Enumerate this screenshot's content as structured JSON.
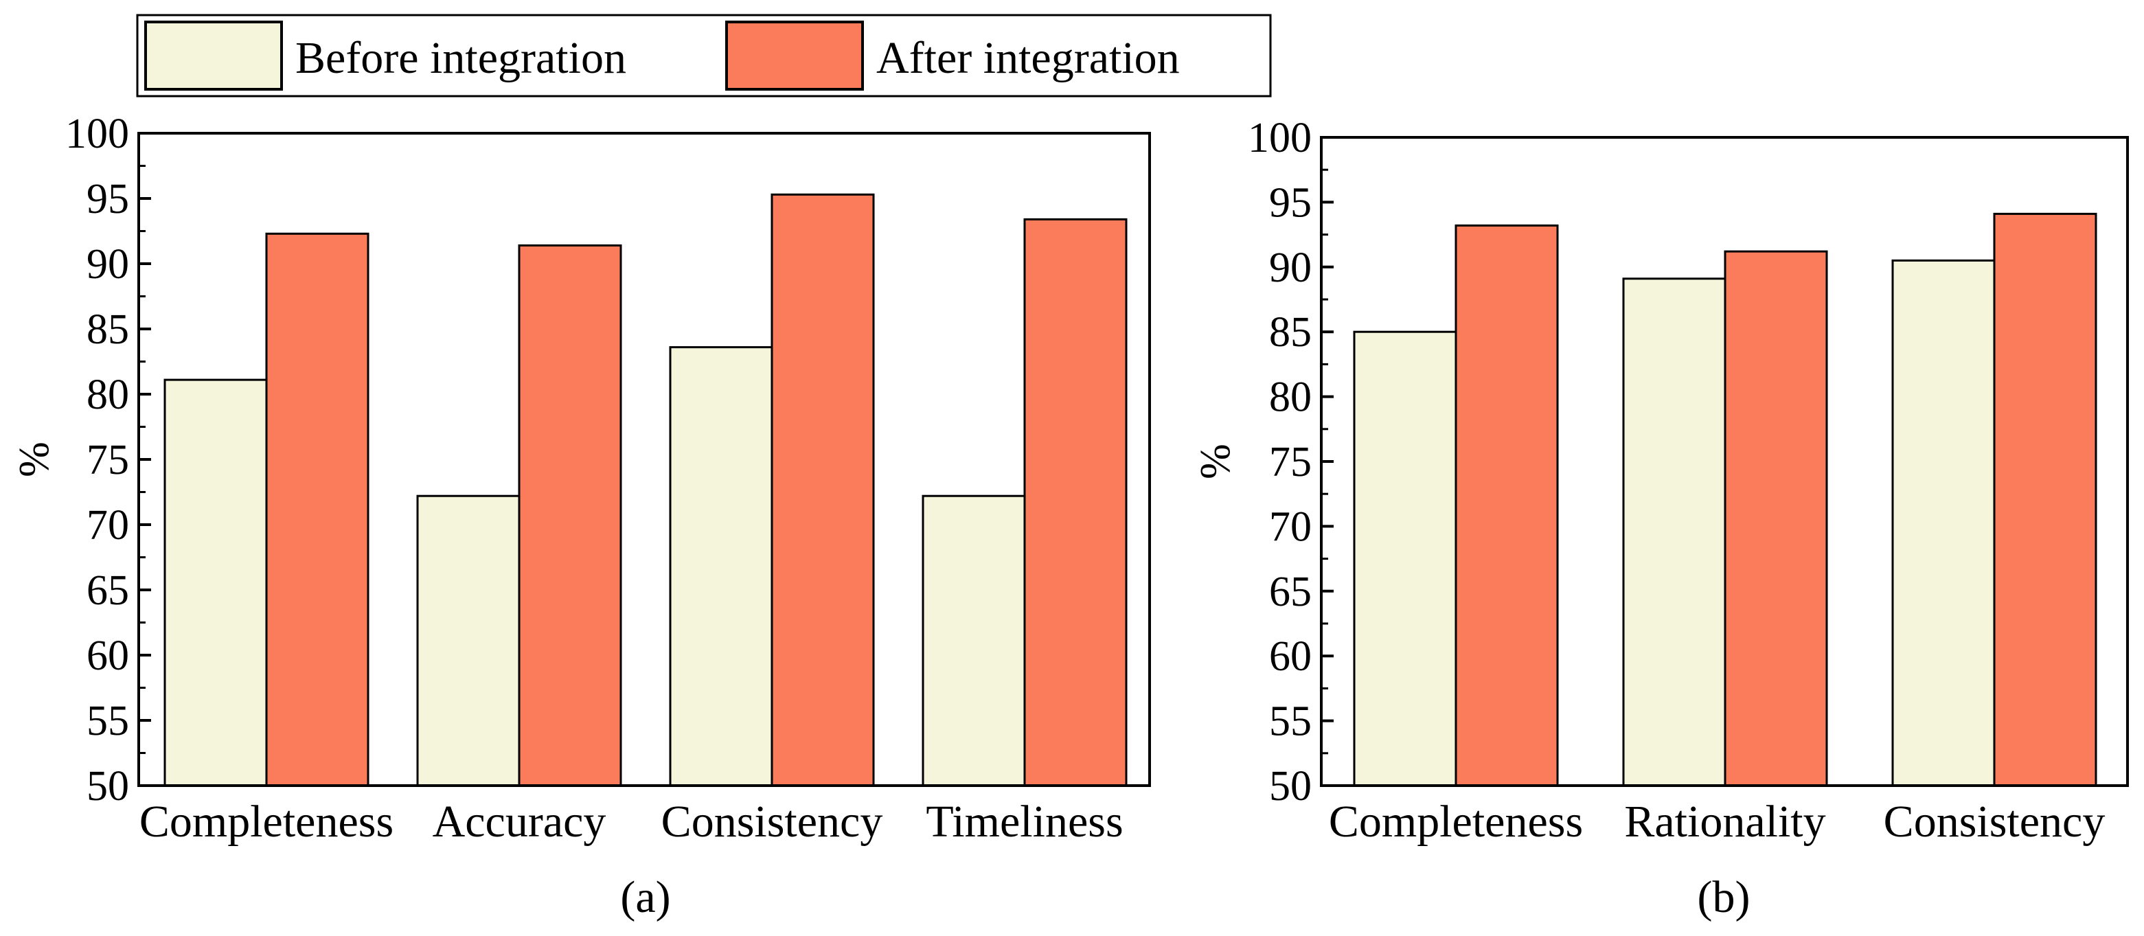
{
  "legend": {
    "before": "Before integration",
    "after": "After integration"
  },
  "colors": {
    "before": "#f5f5dc",
    "after": "#fa7c5a",
    "stroke": "#000000"
  },
  "chart_data": [
    {
      "type": "bar",
      "panel_label": "(a)",
      "categories": [
        "Completeness",
        "Accuracy",
        "Consistency",
        "Timeliness"
      ],
      "series": [
        {
          "name": "Before integration",
          "values": [
            81.1,
            72.2,
            83.6,
            72.2
          ]
        },
        {
          "name": "After integration",
          "values": [
            92.3,
            91.4,
            95.3,
            93.4
          ]
        }
      ],
      "ylabel": "%",
      "ylim": [
        50,
        100
      ],
      "yticks": [
        "50",
        "55",
        "60",
        "65",
        "70",
        "75",
        "80",
        "85",
        "90",
        "95",
        "100"
      ]
    },
    {
      "type": "bar",
      "panel_label": "(b)",
      "categories": [
        "Completeness",
        "Rationality",
        "Consistency"
      ],
      "series": [
        {
          "name": "Before integration",
          "values": [
            85.0,
            89.1,
            90.5
          ]
        },
        {
          "name": "After integration",
          "values": [
            93.2,
            91.2,
            94.1
          ]
        }
      ],
      "ylabel": "%",
      "ylim": [
        50,
        100
      ],
      "yticks": [
        "50",
        "55",
        "60",
        "65",
        "70",
        "75",
        "80",
        "85",
        "90",
        "95",
        "100"
      ]
    }
  ]
}
